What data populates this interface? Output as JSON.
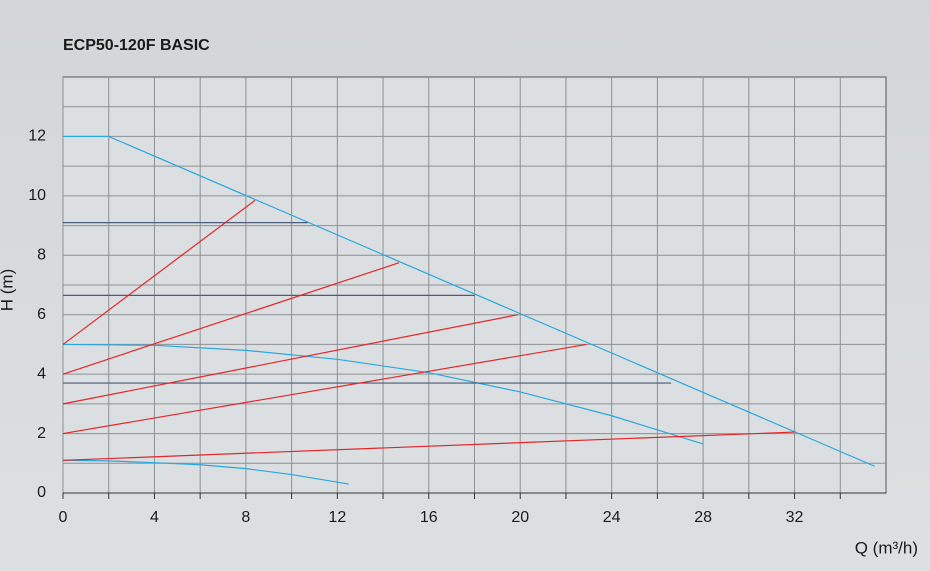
{
  "chart_data": {
    "type": "line",
    "title": "ECP50-120F BASIC",
    "x_label": "Q (m³/h)",
    "y_label": "H (m)",
    "xlim": [
      0,
      36
    ],
    "ylim": [
      0,
      14
    ],
    "xticks": [
      0,
      4,
      8,
      12,
      16,
      20,
      24,
      28,
      32
    ],
    "yticks": [
      0,
      2,
      4,
      6,
      8,
      10,
      12
    ],
    "xminor_ticks": [
      2,
      6,
      10,
      14,
      18,
      22,
      26,
      30,
      34
    ],
    "yminor_ticks": [
      1,
      3,
      5,
      7,
      9,
      11,
      13
    ],
    "grid": true,
    "series": [
      {
        "color": "#29a8e0",
        "x": [
          0,
          2,
          35.5
        ],
        "values": [
          12,
          12,
          0.9
        ]
      },
      {
        "color": "#29a8e0",
        "x": [
          0,
          4,
          8,
          12,
          16,
          20,
          24,
          28
        ],
        "values": [
          5,
          4.97,
          4.8,
          4.5,
          4.05,
          3.4,
          2.6,
          1.65
        ]
      },
      {
        "color": "#29a8e0",
        "x": [
          0,
          2,
          4,
          6,
          8,
          10,
          12.5
        ],
        "values": [
          1.1,
          1.08,
          1.02,
          0.95,
          0.82,
          0.62,
          0.3
        ]
      },
      {
        "color": "#4a5b7c",
        "x": [
          0,
          10.7
        ],
        "values": [
          9.1,
          9.1
        ]
      },
      {
        "color": "#4a5b7c",
        "x": [
          0,
          18
        ],
        "values": [
          6.65,
          6.65
        ]
      },
      {
        "color": "#4a5b7c",
        "x": [
          0,
          26.6
        ],
        "values": [
          3.7,
          3.7
        ]
      },
      {
        "color": "#e3262b",
        "x": [
          0,
          8.4
        ],
        "values": [
          5,
          9.85
        ]
      },
      {
        "color": "#e3262b",
        "x": [
          0,
          14.7
        ],
        "values": [
          4,
          7.75
        ]
      },
      {
        "color": "#e3262b",
        "x": [
          0,
          19.9
        ],
        "values": [
          3,
          6
        ]
      },
      {
        "color": "#e3262b",
        "x": [
          0,
          22.9
        ],
        "values": [
          2,
          5
        ]
      },
      {
        "color": "#e3262b",
        "x": [
          0,
          32
        ],
        "values": [
          1.1,
          2.05
        ]
      }
    ]
  }
}
